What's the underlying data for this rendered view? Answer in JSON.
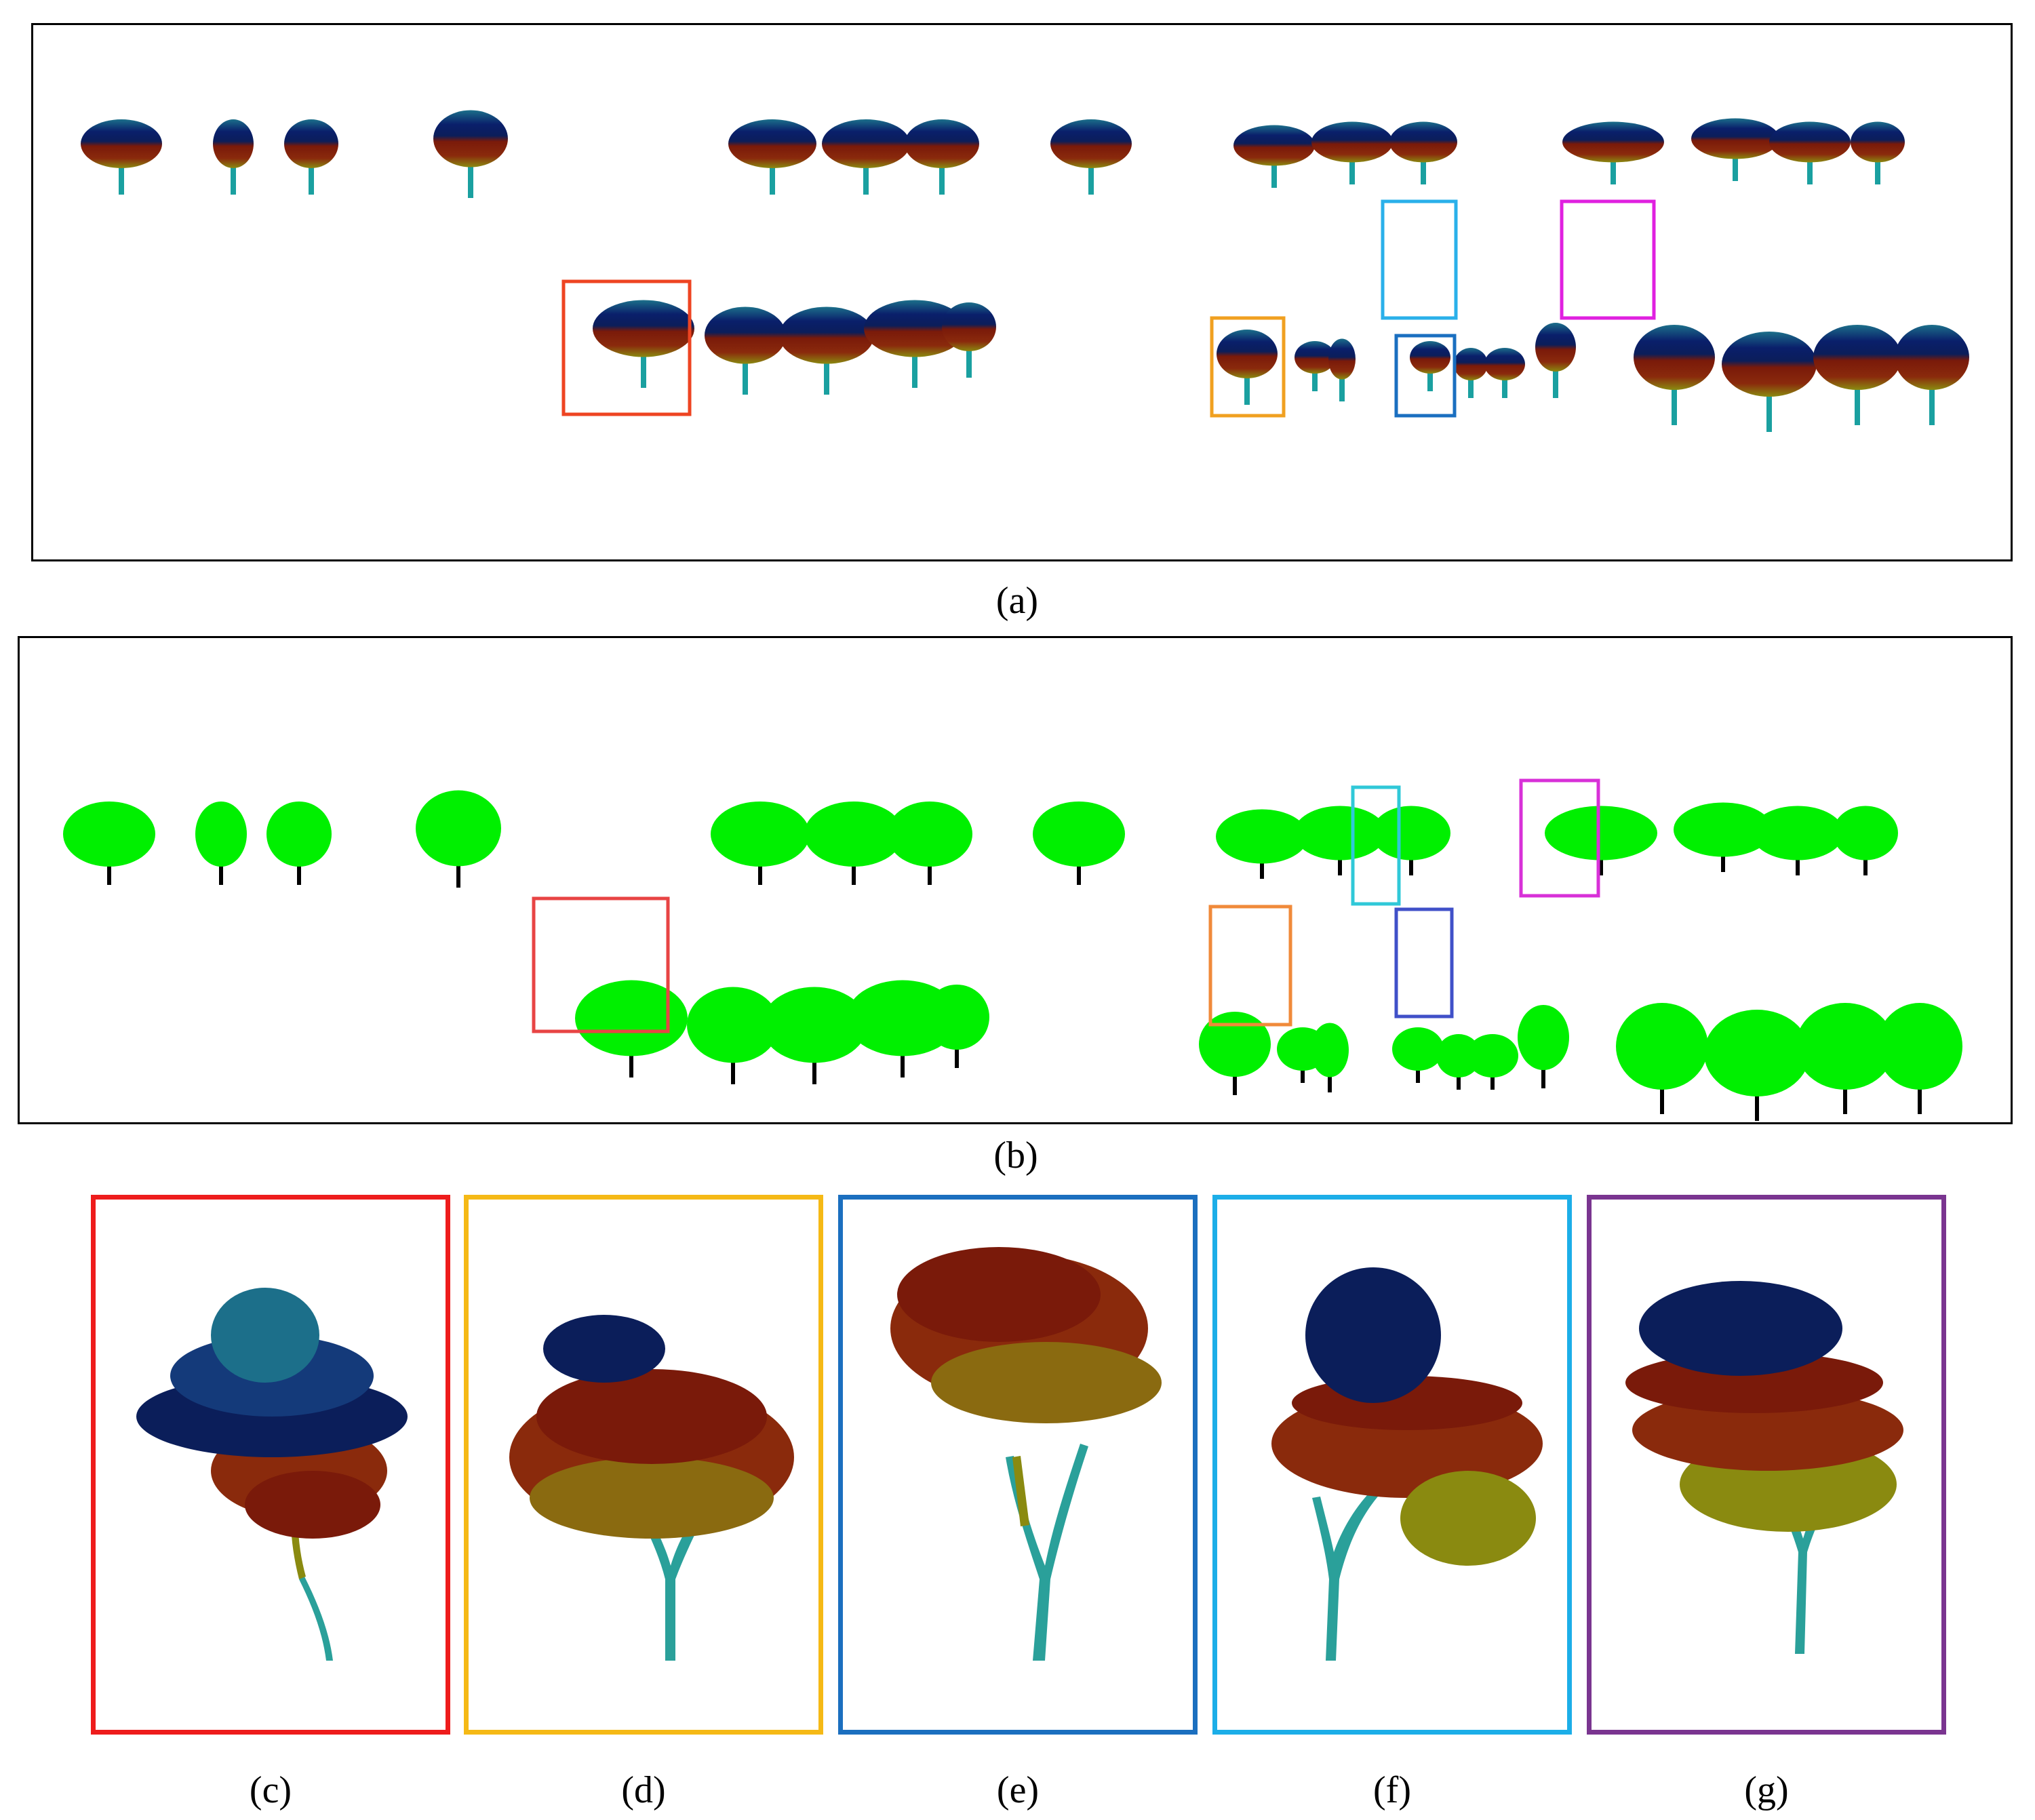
{
  "figure": {
    "captions": {
      "a": "(a)",
      "b": "(b)",
      "c": "(c)",
      "d": "(d)",
      "e": "(e)",
      "f": "(f)",
      "g": "(g)"
    }
  },
  "colors": {
    "highlight_red": "#ee4422",
    "highlight_orange": "#f0a020",
    "highlight_darkblue": "#1a6fc0",
    "highlight_skyblue": "#2ab0ea",
    "highlight_magenta": "#e020e0",
    "subpanel_c": "#ee1c1c",
    "subpanel_d": "#f5b916",
    "subpanel_e": "#1b6fbf",
    "subpanel_f": "#1caee8",
    "subpanel_g": "#7a3590",
    "canopy_top": "#0a1f6b",
    "canopy_mid": "#8a1a0a",
    "canopy_low": "#8a8a10",
    "trunk": "#1aa0a0",
    "segmented_canopy": "#00f000",
    "segmented_trunk": "#000000"
  }
}
